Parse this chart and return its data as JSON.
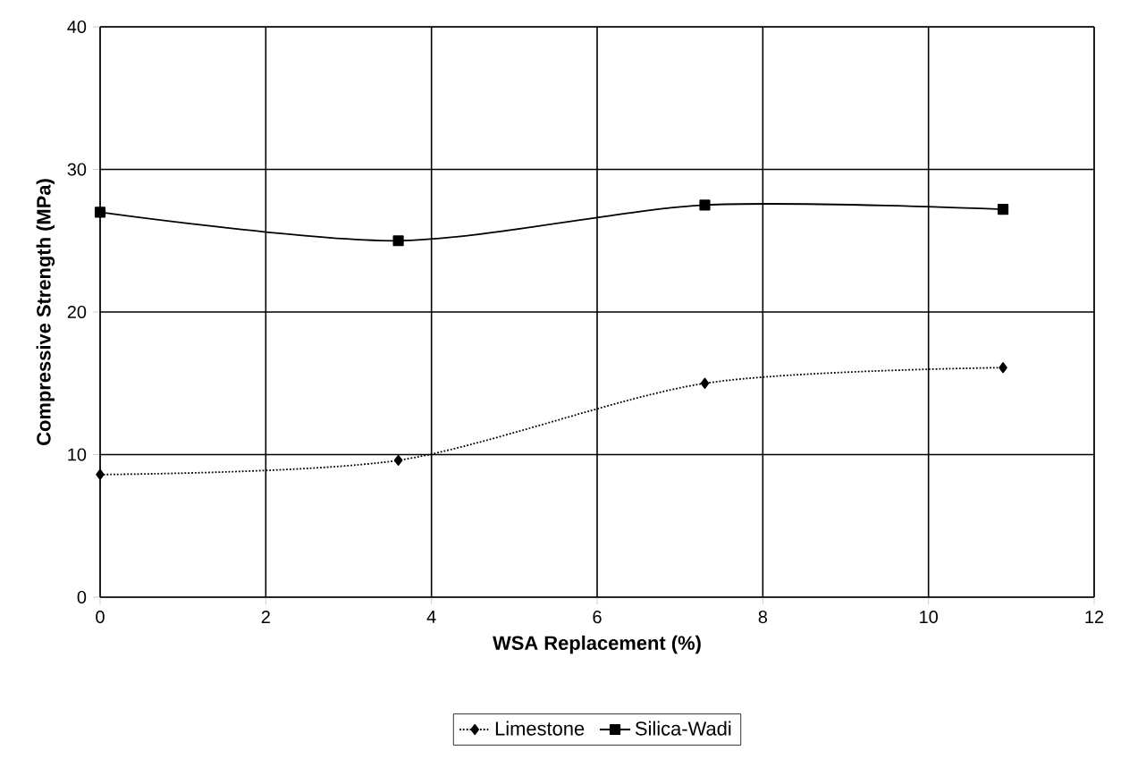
{
  "chart_data": {
    "type": "line",
    "xlabel": "WSA Replacement (%)",
    "ylabel": "Compressive Strength (MPa)",
    "x": [
      0,
      3.6,
      7.3,
      10.9
    ],
    "series": [
      {
        "name": "Limestone",
        "color": "#000000",
        "values": [
          8.6,
          9.6,
          15.0,
          16.1
        ],
        "marker": "diamond",
        "line_style": "dotted"
      },
      {
        "name": "Silica-Wadi",
        "color": "#000000",
        "values": [
          27.0,
          25.0,
          27.5,
          27.2
        ],
        "marker": "square",
        "line_style": "solid"
      }
    ],
    "xlim": [
      0,
      12
    ],
    "ylim": [
      0,
      40
    ],
    "xticks": [
      0,
      2,
      4,
      6,
      8,
      10,
      12
    ],
    "yticks": [
      0,
      10,
      20,
      30,
      40
    ],
    "grid": true,
    "legend": "bottom"
  }
}
